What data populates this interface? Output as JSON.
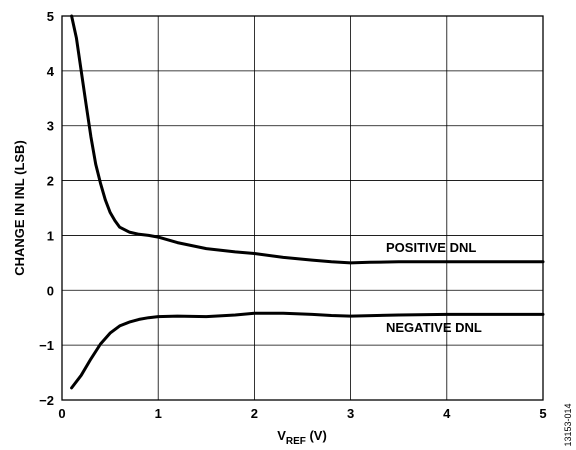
{
  "chart_data": {
    "type": "line",
    "xlabel_main": "V",
    "xlabel_sub": "REF",
    "xlabel_unit": " (V)",
    "ylabel": "CHANGE IN INL (LSB)",
    "xlim": [
      0,
      5
    ],
    "ylim": [
      -2,
      5
    ],
    "xticks": [
      "0",
      "1",
      "2",
      "3",
      "4",
      "5"
    ],
    "yticks": [
      "5",
      "4",
      "3",
      "2",
      "1",
      "0",
      "−1",
      "−2"
    ],
    "grid": true,
    "series": [
      {
        "name": "POSITIVE DNL",
        "x": [
          0.1,
          0.15,
          0.2,
          0.25,
          0.3,
          0.35,
          0.4,
          0.45,
          0.5,
          0.55,
          0.6,
          0.7,
          0.8,
          0.9,
          1.0,
          1.2,
          1.5,
          1.8,
          2.0,
          2.3,
          2.6,
          2.8,
          3.0,
          3.2,
          3.5,
          4.0,
          4.5,
          5.0
        ],
        "y": [
          5.0,
          4.6,
          4.0,
          3.4,
          2.8,
          2.3,
          1.95,
          1.65,
          1.42,
          1.27,
          1.15,
          1.06,
          1.02,
          1.0,
          0.97,
          0.87,
          0.76,
          0.7,
          0.67,
          0.6,
          0.55,
          0.52,
          0.5,
          0.51,
          0.52,
          0.52,
          0.52,
          0.52
        ]
      },
      {
        "name": "NEGATIVE DNL",
        "x": [
          0.1,
          0.2,
          0.3,
          0.4,
          0.5,
          0.6,
          0.7,
          0.8,
          0.9,
          1.0,
          1.2,
          1.5,
          1.8,
          2.0,
          2.3,
          2.6,
          2.8,
          3.0,
          3.5,
          4.0,
          4.5,
          5.0
        ],
        "y": [
          -1.78,
          -1.55,
          -1.25,
          -0.98,
          -0.78,
          -0.65,
          -0.58,
          -0.53,
          -0.5,
          -0.48,
          -0.47,
          -0.48,
          -0.45,
          -0.42,
          -0.42,
          -0.44,
          -0.46,
          -0.47,
          -0.45,
          -0.44,
          -0.44,
          -0.44
        ]
      }
    ]
  },
  "figure_id": "13153-014"
}
